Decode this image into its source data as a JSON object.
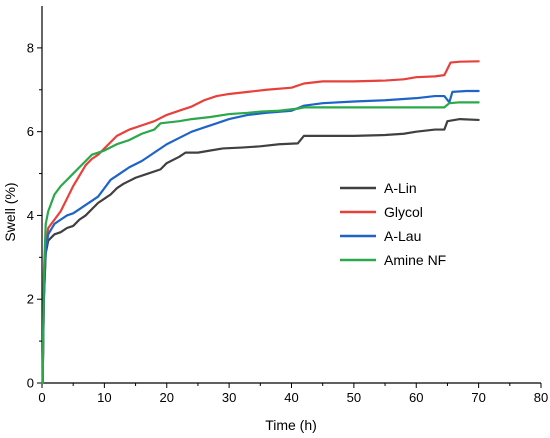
{
  "chart_data": {
    "type": "line",
    "title": "",
    "xlabel": "Time (h)",
    "ylabel": "Swell (%)",
    "xlim": [
      0,
      80
    ],
    "ylim": [
      0,
      9
    ],
    "x_ticks": [
      0,
      10,
      20,
      30,
      40,
      50,
      60,
      70,
      80
    ],
    "y_ticks": [
      0,
      2,
      4,
      6,
      8
    ],
    "grid": false,
    "legend_position": "right",
    "series": [
      {
        "name": "A-Lin",
        "color": "#404040",
        "points": [
          [
            0.1,
            0
          ],
          [
            0.3,
            2.0
          ],
          [
            0.6,
            3.1
          ],
          [
            1,
            3.4
          ],
          [
            2,
            3.55
          ],
          [
            3,
            3.6
          ],
          [
            4,
            3.7
          ],
          [
            5,
            3.75
          ],
          [
            6,
            3.9
          ],
          [
            7,
            4.0
          ],
          [
            8,
            4.15
          ],
          [
            9,
            4.3
          ],
          [
            10,
            4.4
          ],
          [
            11,
            4.5
          ],
          [
            12,
            4.65
          ],
          [
            13,
            4.75
          ],
          [
            15,
            4.9
          ],
          [
            17,
            5.0
          ],
          [
            19,
            5.1
          ],
          [
            20,
            5.25
          ],
          [
            22,
            5.4
          ],
          [
            23,
            5.5
          ],
          [
            25,
            5.5
          ],
          [
            27,
            5.55
          ],
          [
            29,
            5.6
          ],
          [
            32,
            5.62
          ],
          [
            35,
            5.65
          ],
          [
            38,
            5.7
          ],
          [
            41,
            5.72
          ],
          [
            42,
            5.9
          ],
          [
            45,
            5.9
          ],
          [
            50,
            5.9
          ],
          [
            55,
            5.92
          ],
          [
            58,
            5.95
          ],
          [
            60,
            6.0
          ],
          [
            63,
            6.05
          ],
          [
            64.5,
            6.05
          ],
          [
            65,
            6.25
          ],
          [
            67,
            6.3
          ],
          [
            70,
            6.28
          ]
        ]
      },
      {
        "name": "Glycol",
        "color": "#e8403a",
        "points": [
          [
            0.1,
            0
          ],
          [
            0.3,
            2.0
          ],
          [
            0.6,
            3.3
          ],
          [
            1,
            3.7
          ],
          [
            2,
            3.9
          ],
          [
            3,
            4.1
          ],
          [
            4,
            4.4
          ],
          [
            5,
            4.7
          ],
          [
            6,
            4.95
          ],
          [
            7,
            5.2
          ],
          [
            8,
            5.35
          ],
          [
            9,
            5.45
          ],
          [
            10,
            5.6
          ],
          [
            12,
            5.9
          ],
          [
            14,
            6.05
          ],
          [
            16,
            6.15
          ],
          [
            18,
            6.25
          ],
          [
            20,
            6.4
          ],
          [
            22,
            6.5
          ],
          [
            24,
            6.6
          ],
          [
            26,
            6.75
          ],
          [
            28,
            6.85
          ],
          [
            30,
            6.9
          ],
          [
            33,
            6.95
          ],
          [
            36,
            7.0
          ],
          [
            40,
            7.05
          ],
          [
            42,
            7.15
          ],
          [
            45,
            7.2
          ],
          [
            50,
            7.2
          ],
          [
            55,
            7.22
          ],
          [
            58,
            7.25
          ],
          [
            60,
            7.3
          ],
          [
            63,
            7.32
          ],
          [
            64.5,
            7.35
          ],
          [
            65,
            7.5
          ],
          [
            65.5,
            7.65
          ],
          [
            67,
            7.67
          ],
          [
            70,
            7.68
          ]
        ]
      },
      {
        "name": "A-Lau",
        "color": "#1e64c8",
        "points": [
          [
            0.1,
            0
          ],
          [
            0.3,
            2.1
          ],
          [
            0.6,
            3.2
          ],
          [
            1,
            3.55
          ],
          [
            2,
            3.8
          ],
          [
            3,
            3.9
          ],
          [
            4,
            4.0
          ],
          [
            5,
            4.05
          ],
          [
            6,
            4.15
          ],
          [
            7,
            4.25
          ],
          [
            8,
            4.35
          ],
          [
            9,
            4.45
          ],
          [
            10,
            4.65
          ],
          [
            11,
            4.85
          ],
          [
            12,
            4.95
          ],
          [
            13,
            5.05
          ],
          [
            14,
            5.15
          ],
          [
            16,
            5.3
          ],
          [
            18,
            5.5
          ],
          [
            20,
            5.7
          ],
          [
            22,
            5.85
          ],
          [
            24,
            6.0
          ],
          [
            26,
            6.1
          ],
          [
            28,
            6.2
          ],
          [
            30,
            6.3
          ],
          [
            33,
            6.4
          ],
          [
            36,
            6.45
          ],
          [
            40,
            6.5
          ],
          [
            42,
            6.62
          ],
          [
            45,
            6.68
          ],
          [
            50,
            6.72
          ],
          [
            55,
            6.75
          ],
          [
            60,
            6.8
          ],
          [
            63,
            6.85
          ],
          [
            64.5,
            6.85
          ],
          [
            65.3,
            6.7
          ],
          [
            65.8,
            6.95
          ],
          [
            68,
            6.97
          ],
          [
            70,
            6.97
          ]
        ]
      },
      {
        "name": "Amine NF",
        "color": "#2aa84a",
        "points": [
          [
            0.1,
            0
          ],
          [
            0.3,
            2.6
          ],
          [
            0.6,
            3.8
          ],
          [
            1,
            4.1
          ],
          [
            2,
            4.5
          ],
          [
            3,
            4.7
          ],
          [
            4,
            4.85
          ],
          [
            5,
            5.0
          ],
          [
            6,
            5.15
          ],
          [
            7,
            5.3
          ],
          [
            8,
            5.45
          ],
          [
            10,
            5.55
          ],
          [
            12,
            5.7
          ],
          [
            14,
            5.8
          ],
          [
            16,
            5.95
          ],
          [
            18,
            6.05
          ],
          [
            19,
            6.2
          ],
          [
            22,
            6.25
          ],
          [
            24,
            6.3
          ],
          [
            27,
            6.35
          ],
          [
            30,
            6.42
          ],
          [
            33,
            6.45
          ],
          [
            35,
            6.48
          ],
          [
            38,
            6.5
          ],
          [
            41,
            6.55
          ],
          [
            42,
            6.58
          ],
          [
            45,
            6.58
          ],
          [
            50,
            6.58
          ],
          [
            55,
            6.58
          ],
          [
            60,
            6.58
          ],
          [
            64.5,
            6.58
          ],
          [
            65.3,
            6.68
          ],
          [
            67,
            6.7
          ],
          [
            70,
            6.7
          ]
        ]
      }
    ]
  }
}
